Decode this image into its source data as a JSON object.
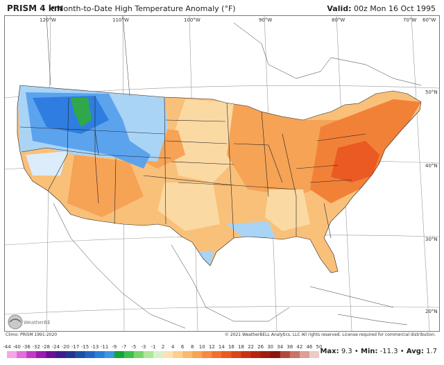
{
  "header": {
    "title": "PRISM 4 km",
    "bullet": "•",
    "subtitle": "Month-to-Date High Temperature Anomaly (°F)",
    "valid_label": "Valid:",
    "valid_value": "00z Mon 16 Oct 1995"
  },
  "map": {
    "longitude_labels": [
      "120°W",
      "110°W",
      "100°W",
      "90°W",
      "80°W",
      "70°W",
      "60°W"
    ],
    "latitude_labels": [
      "50°N",
      "40°N",
      "30°N",
      "20°N"
    ],
    "colors": {
      "deep_blue": "#2f7de0",
      "blue": "#5ca3ee",
      "light_blue": "#a9d4f5",
      "pale_blue": "#dcecfb",
      "green": "#2ea84a",
      "pale_orange": "#fbd9a3",
      "light_orange": "#f9c07a",
      "orange": "#f6a356",
      "dark_orange": "#f28138",
      "red_orange": "#ea5a22"
    }
  },
  "footer": {
    "climo": "Climo: PRISM 1991-2020",
    "copyright": "© 2021 WeatherBELL Analytics, LLC All rights reserved. License required for commercial distribution.",
    "logo_text": "WeatherBELL"
  },
  "colorbar": {
    "ticks": [
      "-44",
      "-40",
      "-36",
      "-32",
      "-28",
      "-24",
      "-20",
      "-17",
      "-15",
      "-13",
      "-11",
      "-9",
      "-7",
      "-5",
      "-3",
      "-1",
      "2",
      "4",
      "6",
      "8",
      "10",
      "12",
      "14",
      "16",
      "18",
      "22",
      "26",
      "30",
      "34",
      "38",
      "42",
      "46",
      "50"
    ],
    "colors": [
      "#f5a6e6",
      "#e36fd8",
      "#c33ac6",
      "#9b1bb0",
      "#6c1097",
      "#3f1d8c",
      "#27348f",
      "#1e4fa8",
      "#2364c2",
      "#2c7ed8",
      "#3d96e6",
      "#17a33a",
      "#3cbf4e",
      "#77d66b",
      "#aee69a",
      "#d6f2c9",
      "#fce1b3",
      "#fbcf8f",
      "#f9ba70",
      "#f7a356",
      "#f48b40",
      "#f0712d",
      "#e85a22",
      "#db4519",
      "#c93314",
      "#b62510",
      "#a01c10",
      "#8a1610",
      "#b04a3a",
      "#c87466",
      "#dba097",
      "#ecccc6"
    ]
  },
  "stats": {
    "max_label": "Max:",
    "max_value": "9.3",
    "min_label": "Min:",
    "min_value": "-11.3",
    "avg_label": "Avg:",
    "avg_value": "1.7",
    "sep": "•"
  }
}
